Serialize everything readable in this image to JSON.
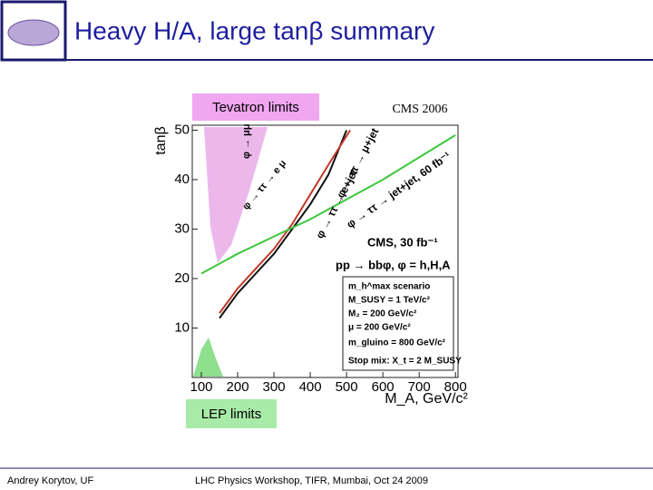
{
  "header": {
    "title": "Heavy H/A, large tanβ summary"
  },
  "labels": {
    "tevatron": "Tevatron limits",
    "cms": "CMS 2006",
    "lep": "LEP limits"
  },
  "chart_data": {
    "type": "line",
    "x_label": "M_A, GeV/c²",
    "y_label": "tanβ",
    "xlim": [
      75,
      807
    ],
    "ylim": [
      0,
      51
    ],
    "xticks": [
      100,
      200,
      300,
      400,
      500,
      600,
      700,
      800
    ],
    "yticks": [
      10,
      20,
      30,
      40,
      50
    ],
    "series": [
      {
        "name": "φ → ττ → e+jet",
        "color": "#111111",
        "x": [
          150,
          200,
          250,
          300,
          350,
          400,
          450,
          500
        ],
        "values": [
          12,
          17,
          21,
          25,
          30,
          35,
          41,
          50
        ]
      },
      {
        "name": "φ → ττ → μ+jet",
        "color": "#c0392b",
        "x": [
          150,
          200,
          250,
          300,
          350,
          400,
          450,
          510
        ],
        "values": [
          13,
          18,
          22,
          26,
          31,
          37,
          43,
          50
        ]
      },
      {
        "name": "φ → ττ → jet+jet, 60 fb⁻¹",
        "color": "#3cc83c",
        "x": [
          100,
          200,
          300,
          400,
          500,
          600,
          700,
          800
        ],
        "values": [
          21,
          25,
          28.5,
          32,
          36,
          40,
          44.5,
          49
        ]
      }
    ],
    "annotations": [
      "CMS, 30 fb⁻¹",
      "pp → bbφ, φ = h,H,A",
      "m_h^max scenario",
      "M_SUSY = 1 TeV/c²",
      "M₂ = 200 GeV/c²",
      "μ = 200 GeV/c²",
      "m_gluino = 800 GeV/c²",
      "Stop mix: X_t = 2 M_SUSY",
      "φ → μμ",
      "φ → ττ → e μ"
    ]
  },
  "footer": {
    "author": "Andrey Korytov, UF",
    "event": "LHC Physics Workshop, TIFR, Mumbai, Oct 24 2009"
  }
}
